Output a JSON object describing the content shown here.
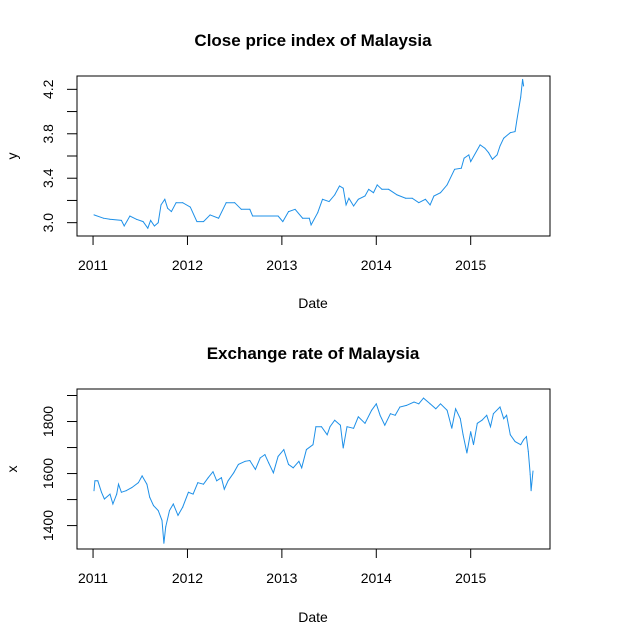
{
  "chart_data": [
    {
      "type": "line",
      "title": "Close price index of Malaysia",
      "xlabel": "Date",
      "ylabel": "y",
      "xlim": [
        2010.83,
        2015.84
      ],
      "ylim": [
        2.88,
        4.32
      ],
      "yticks": [
        3.0,
        3.2,
        3.4,
        3.6,
        3.8,
        4.0,
        4.2
      ],
      "ytick_labels": [
        "3.0",
        "3.4",
        "3.8",
        "4.2"
      ],
      "xticks": [
        2011,
        2012,
        2013,
        2014,
        2015
      ],
      "xtick_labels": [
        "2011",
        "2012",
        "2013",
        "2014",
        "2015"
      ],
      "color": "#1e90e8",
      "x": [
        2011.01,
        2011.11,
        2011.18,
        2011.3,
        2011.33,
        2011.39,
        2011.46,
        2011.53,
        2011.58,
        2011.61,
        2011.65,
        2011.69,
        2011.72,
        2011.76,
        2011.79,
        2011.83,
        2011.88,
        2011.95,
        2012.03,
        2012.1,
        2012.17,
        2012.24,
        2012.33,
        2012.41,
        2012.5,
        2012.57,
        2012.66,
        2012.69,
        2012.78,
        2012.87,
        2012.96,
        2013.01,
        2013.07,
        2013.14,
        2013.22,
        2013.29,
        2013.31,
        2013.38,
        2013.43,
        2013.5,
        2013.56,
        2013.61,
        2013.65,
        2013.68,
        2013.71,
        2013.76,
        2013.81,
        2013.88,
        2013.92,
        2013.97,
        2014.01,
        2014.06,
        2014.13,
        2014.22,
        2014.31,
        2014.38,
        2014.45,
        2014.52,
        2014.57,
        2014.61,
        2014.68,
        2014.75,
        2014.83,
        2014.9,
        2014.93,
        2014.98,
        2015.0,
        2015.1,
        2015.15,
        2015.19,
        2015.23,
        2015.28,
        2015.31,
        2015.35,
        2015.42,
        2015.47,
        2015.49,
        2015.53,
        2015.55,
        2015.56
      ],
      "y": [
        3.07,
        3.04,
        3.03,
        3.02,
        2.97,
        3.06,
        3.03,
        3.01,
        2.95,
        3.02,
        2.97,
        3.0,
        3.16,
        3.21,
        3.13,
        3.1,
        3.18,
        3.18,
        3.14,
        3.01,
        3.01,
        3.07,
        3.04,
        3.18,
        3.18,
        3.12,
        3.12,
        3.06,
        3.06,
        3.06,
        3.06,
        3.01,
        3.1,
        3.12,
        3.04,
        3.04,
        2.98,
        3.09,
        3.21,
        3.19,
        3.25,
        3.33,
        3.31,
        3.16,
        3.22,
        3.15,
        3.21,
        3.24,
        3.3,
        3.27,
        3.34,
        3.3,
        3.3,
        3.25,
        3.22,
        3.22,
        3.18,
        3.21,
        3.16,
        3.24,
        3.27,
        3.34,
        3.48,
        3.49,
        3.58,
        3.61,
        3.55,
        3.7,
        3.67,
        3.63,
        3.57,
        3.61,
        3.69,
        3.76,
        3.81,
        3.82,
        3.93,
        4.13,
        4.29,
        4.23
      ]
    },
    {
      "type": "line",
      "title": "Exchange rate of Malaysia",
      "xlabel": "Date",
      "ylabel": "x",
      "xlim": [
        2010.83,
        2015.84
      ],
      "ylim": [
        1310,
        1925
      ],
      "yticks": [
        1400,
        1500,
        1600,
        1700,
        1800,
        1900
      ],
      "ytick_labels": [
        "1400",
        "1600",
        "1800"
      ],
      "xticks": [
        2011,
        2012,
        2013,
        2014,
        2015
      ],
      "xtick_labels": [
        "2011",
        "2012",
        "2013",
        "2014",
        "2015"
      ],
      "color": "#1e90e8",
      "x": [
        2011.01,
        2011.02,
        2011.05,
        2011.09,
        2011.12,
        2011.18,
        2011.21,
        2011.25,
        2011.27,
        2011.3,
        2011.35,
        2011.41,
        2011.48,
        2011.52,
        2011.57,
        2011.6,
        2011.64,
        2011.69,
        2011.73,
        2011.75,
        2011.77,
        2011.81,
        2011.85,
        2011.9,
        2011.95,
        2012.01,
        2012.06,
        2012.11,
        2012.17,
        2012.22,
        2012.27,
        2012.31,
        2012.36,
        2012.39,
        2012.43,
        2012.49,
        2012.54,
        2012.61,
        2012.66,
        2012.72,
        2012.77,
        2012.82,
        2012.86,
        2012.91,
        2012.96,
        2013.02,
        2013.07,
        2013.12,
        2013.18,
        2013.21,
        2013.26,
        2013.33,
        2013.36,
        2013.42,
        2013.48,
        2013.51,
        2013.56,
        2013.62,
        2013.65,
        2013.69,
        2013.76,
        2013.81,
        2013.88,
        2013.95,
        2014.0,
        2014.04,
        2014.09,
        2014.15,
        2014.2,
        2014.25,
        2014.32,
        2014.4,
        2014.45,
        2014.5,
        2014.57,
        2014.63,
        2014.68,
        2014.75,
        2014.8,
        2014.84,
        2014.89,
        2014.92,
        2014.96,
        2015.0,
        2015.03,
        2015.07,
        2015.12,
        2015.17,
        2015.21,
        2015.24,
        2015.31,
        2015.35,
        2015.38,
        2015.42,
        2015.47,
        2015.53,
        2015.56,
        2015.59,
        2015.61,
        2015.63,
        2015.64,
        2015.66
      ],
      "y": [
        1534,
        1572,
        1572,
        1528,
        1502,
        1521,
        1483,
        1521,
        1559,
        1528,
        1534,
        1546,
        1565,
        1591,
        1559,
        1509,
        1477,
        1458,
        1420,
        1332,
        1395,
        1458,
        1483,
        1439,
        1471,
        1528,
        1521,
        1565,
        1559,
        1584,
        1607,
        1572,
        1584,
        1540,
        1572,
        1603,
        1635,
        1647,
        1650,
        1616,
        1660,
        1673,
        1641,
        1603,
        1666,
        1692,
        1635,
        1622,
        1647,
        1622,
        1692,
        1711,
        1780,
        1780,
        1749,
        1780,
        1805,
        1786,
        1698,
        1780,
        1774,
        1818,
        1793,
        1843,
        1868,
        1824,
        1786,
        1830,
        1824,
        1856,
        1862,
        1875,
        1868,
        1890,
        1868,
        1849,
        1868,
        1843,
        1774,
        1849,
        1811,
        1749,
        1679,
        1761,
        1711,
        1793,
        1805,
        1824,
        1780,
        1830,
        1856,
        1811,
        1824,
        1749,
        1723,
        1711,
        1730,
        1742,
        1685,
        1597,
        1534,
        1610
      ]
    }
  ]
}
